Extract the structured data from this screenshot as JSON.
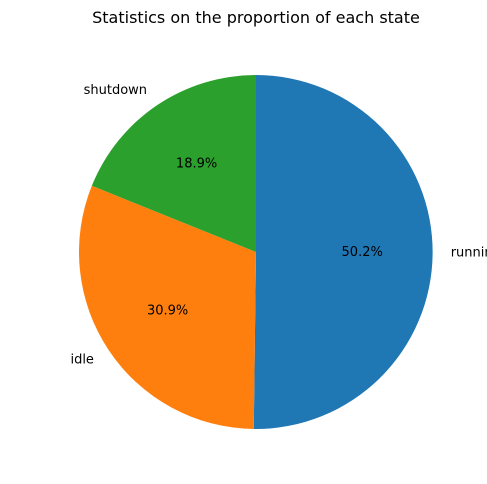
{
  "chart_data": {
    "type": "pie",
    "title": "Statistics on the proportion of each state",
    "start_angle_deg": 90,
    "direction": "clockwise",
    "slices": [
      {
        "label": "running",
        "value": 50.2,
        "pct_label": "50.2%",
        "color": "#1f77b4"
      },
      {
        "label": "idle",
        "value": 30.9,
        "pct_label": "30.9%",
        "color": "#ff7f0e"
      },
      {
        "label": "shutdown",
        "value": 18.9,
        "pct_label": "18.9%",
        "color": "#2ca02c"
      }
    ]
  }
}
